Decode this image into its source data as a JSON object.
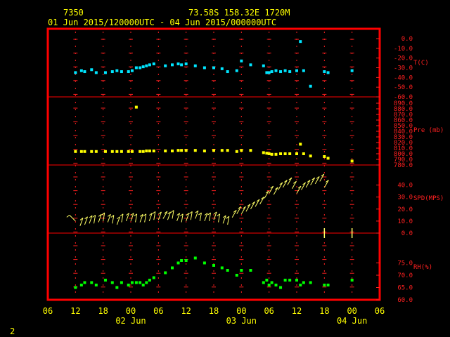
{
  "header": {
    "station": "7350",
    "location": "73.58S   158.32E   1720M",
    "period": "01 Jun 2015/120000UTC - 04 Jun 2015/000000UTC"
  },
  "footer": {
    "page_number": "2"
  },
  "colors": {
    "frame": "#ff0000",
    "tick": "#ff2020",
    "label": "#ffff00",
    "temp": "#00e5ff",
    "pressure": "#ffff00",
    "wind": "#ffff66",
    "rh": "#00ff00"
  },
  "chart_data": [
    {
      "type": "scatter",
      "ylabel": "T(C)",
      "ylim": [
        -60,
        0
      ],
      "yticks": [
        "0.0",
        "-10.0",
        "-20.0",
        "-30.0",
        "-40.0",
        "-50.0",
        "-60.0"
      ],
      "x": [
        12,
        13.3,
        14,
        15.5,
        16.5,
        18.5,
        20,
        21,
        22,
        23.5,
        24.3,
        25.2,
        26,
        26.7,
        27.4,
        28.1,
        29,
        31.5,
        33,
        34.3,
        35,
        36,
        38,
        40,
        42,
        43.8,
        45,
        47,
        48,
        50,
        52.8,
        53.5,
        54,
        54.6,
        55.5,
        56.5,
        57.5,
        58.5,
        60,
        60.8,
        61.5,
        63,
        66,
        66.8,
        72
      ],
      "y": [
        -35,
        -33,
        -34,
        -32,
        -35,
        -35,
        -34,
        -33,
        -34,
        -34,
        -33,
        -30,
        -30,
        -29,
        -28,
        -27,
        -26,
        -28,
        -27,
        -26,
        -27,
        -26,
        -28,
        -30,
        -30,
        -31,
        -34,
        -33,
        -23,
        -27,
        -28,
        -35,
        -35,
        -34,
        -33,
        -34,
        -33,
        -34,
        -33,
        -3,
        -33,
        -49,
        -34,
        -35,
        -33
      ]
    },
    {
      "type": "scatter",
      "ylabel": "Pre (mb)",
      "ylim": [
        780,
        890
      ],
      "yticks": [
        "890.0",
        "880.0",
        "870.0",
        "860.0",
        "850.0",
        "840.0",
        "830.0",
        "820.0",
        "810.0",
        "800.0",
        "790.0",
        "780.0"
      ],
      "x": [
        12,
        13.3,
        14,
        15.5,
        16.5,
        18.5,
        20,
        21,
        22,
        23.5,
        24.3,
        25.2,
        26,
        26.7,
        27.4,
        28.1,
        29,
        31.5,
        33,
        34.3,
        35,
        36,
        38,
        40,
        42,
        43.8,
        45,
        47,
        48,
        50,
        52.8,
        53.5,
        54,
        54.6,
        55.5,
        56.5,
        57.5,
        58.5,
        60,
        60.8,
        61.5,
        63,
        66,
        66.8,
        72
      ],
      "y": [
        804,
        804,
        804,
        804,
        804,
        804,
        804,
        804,
        804,
        804,
        804,
        883,
        804,
        804,
        805,
        805,
        805,
        805,
        805,
        806,
        806,
        806,
        806,
        805,
        806,
        806,
        806,
        804,
        806,
        806,
        802,
        801,
        800,
        799,
        799,
        800,
        800,
        800,
        800,
        817,
        800,
        796,
        795,
        792,
        787
      ]
    },
    {
      "type": "scatter",
      "subtype": "wind-arrows",
      "ylabel": "SPD(MPS)",
      "ylim": [
        0,
        45
      ],
      "yticks": [
        "40.0",
        "30.0",
        "20.0",
        "10.0",
        "0.0"
      ],
      "x": [
        12,
        13,
        14,
        15,
        16,
        17,
        18,
        19,
        20,
        21,
        22,
        23,
        24,
        25,
        26,
        27,
        28,
        29,
        30,
        31,
        32,
        33,
        34,
        35,
        36,
        37,
        38,
        39,
        40,
        41,
        42,
        43,
        44,
        45,
        46,
        47,
        48,
        49,
        50,
        51,
        52,
        53,
        54,
        55,
        56,
        57,
        58,
        59,
        60,
        61,
        62,
        63,
        64,
        65,
        66
      ],
      "y": [
        10,
        6,
        7,
        8,
        8,
        9,
        10,
        9,
        8,
        7,
        9,
        10,
        10,
        9,
        9,
        9,
        10,
        11,
        11,
        12,
        11,
        12,
        10,
        9,
        10,
        11,
        12,
        10,
        10,
        10,
        11,
        9,
        8,
        7,
        13,
        16,
        16,
        18,
        20,
        22,
        24,
        29,
        33,
        32,
        36,
        38,
        40,
        37,
        33,
        36,
        38,
        40,
        41,
        43,
        38
      ],
      "direction_deg": [
        315,
        20,
        20,
        20,
        10,
        20,
        10,
        20,
        10,
        20,
        10,
        20,
        20,
        10,
        20,
        10,
        20,
        10,
        20,
        30,
        20,
        10,
        20,
        10,
        20,
        10,
        20,
        10,
        20,
        10,
        20,
        10,
        20,
        10,
        30,
        30,
        30,
        30,
        30,
        30,
        30,
        30,
        30,
        30,
        30,
        30,
        30,
        30,
        30,
        30,
        30,
        30,
        30,
        30,
        30
      ]
    },
    {
      "type": "scatter",
      "ylabel": "RH(%)",
      "ylim": [
        60,
        80
      ],
      "yticks": [
        "75.0",
        "70.0",
        "65.0",
        "60.0"
      ],
      "x": [
        12,
        13.3,
        14,
        15.5,
        16.5,
        18.5,
        20,
        21,
        22,
        23.5,
        24.3,
        25.2,
        26,
        26.7,
        27.4,
        28.1,
        29,
        31.5,
        33,
        34.3,
        35,
        36,
        38,
        40,
        42,
        43.8,
        45,
        47,
        48,
        50,
        52.8,
        53.5,
        54,
        54.6,
        55.5,
        56.5,
        57.5,
        58.5,
        60,
        60.8,
        61.5,
        63,
        66,
        66.8,
        72
      ],
      "y": [
        65,
        66,
        67,
        67,
        66,
        68,
        67,
        65,
        67,
        66,
        67,
        67,
        67,
        66,
        67,
        68,
        69,
        71,
        73,
        75,
        76,
        76,
        77,
        75,
        74,
        73,
        72,
        70,
        72,
        72,
        67,
        68,
        66,
        67,
        66,
        65,
        68,
        68,
        68,
        66,
        67,
        67,
        66,
        66,
        68
      ]
    }
  ],
  "xaxis": {
    "hour_labels": [
      "06",
      "12",
      "18",
      "00",
      "06",
      "12",
      "18",
      "00",
      "06",
      "12",
      "18",
      "00",
      "06"
    ],
    "hour_values": [
      6,
      12,
      18,
      24,
      30,
      36,
      42,
      48,
      54,
      60,
      66,
      72,
      78
    ],
    "date_labels": [
      {
        "text": "02 Jun",
        "at": 24
      },
      {
        "text": "03 Jun",
        "at": 48
      },
      {
        "text": "04 Jun",
        "at": 72
      }
    ]
  }
}
